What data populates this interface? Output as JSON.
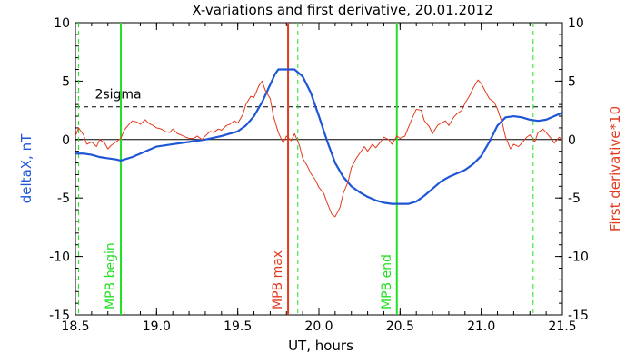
{
  "chart_data": {
    "type": "line",
    "title": "X-variations and first derivative, 20.01.2012",
    "xlabel": "UT, hours",
    "ylabel_left": "deltaX, nT",
    "ylabel_right": "First derivative*10",
    "xlim": [
      18.5,
      21.5
    ],
    "ylim_left": [
      -15,
      10
    ],
    "ylim_right": [
      -15,
      10
    ],
    "xticks": [
      "18.5",
      "19.0",
      "19.5",
      "20.0",
      "20.5",
      "21.0",
      "21.5"
    ],
    "yticks_left": [
      "10",
      "5",
      "0",
      "-5",
      "-10",
      "-15"
    ],
    "yticks_right": [
      "10",
      "5",
      "0",
      "-5",
      "-10",
      "-15"
    ],
    "sigma_label": "2sigma",
    "sigma_level": 2.8,
    "colors": {
      "deltaX": "#1e56d6",
      "derivative": "#e23a1f",
      "mpb": "#22e022",
      "mpb_max": "#e23a1f",
      "sigma": "#000000"
    },
    "series": [
      {
        "key": "deltaX",
        "x": [
          18.5,
          18.55,
          18.6,
          18.65,
          18.7,
          18.75,
          18.78,
          18.85,
          18.9,
          18.95,
          19.0,
          19.1,
          19.2,
          19.3,
          19.4,
          19.45,
          19.5,
          19.55,
          19.6,
          19.65,
          19.7,
          19.73,
          19.75,
          19.8,
          19.85,
          19.9,
          19.95,
          20.0,
          20.05,
          20.1,
          20.15,
          20.2,
          20.25,
          20.3,
          20.35,
          20.4,
          20.45,
          20.5,
          20.55,
          20.6,
          20.65,
          20.7,
          20.75,
          20.8,
          20.85,
          20.9,
          20.95,
          21.0,
          21.05,
          21.1,
          21.15,
          21.2,
          21.25,
          21.3,
          21.35,
          21.4,
          21.45,
          21.5
        ],
        "y": [
          -1.2,
          -1.2,
          -1.3,
          -1.5,
          -1.6,
          -1.7,
          -1.8,
          -1.5,
          -1.2,
          -0.9,
          -0.6,
          -0.4,
          -0.2,
          0.0,
          0.3,
          0.5,
          0.7,
          1.2,
          2.0,
          3.2,
          4.7,
          5.6,
          6.0,
          6.0,
          6.0,
          5.4,
          4.0,
          2.0,
          -0.1,
          -2.0,
          -3.2,
          -4.0,
          -4.5,
          -4.9,
          -5.2,
          -5.4,
          -5.5,
          -5.5,
          -5.5,
          -5.3,
          -4.8,
          -4.2,
          -3.6,
          -3.2,
          -2.9,
          -2.6,
          -2.1,
          -1.4,
          -0.2,
          1.2,
          1.9,
          2.0,
          1.9,
          1.7,
          1.6,
          1.7,
          2.0,
          2.3
        ]
      },
      {
        "key": "derivative",
        "x": [
          18.5,
          18.52,
          18.55,
          18.57,
          18.6,
          18.63,
          18.65,
          18.68,
          18.7,
          18.72,
          18.75,
          18.78,
          18.8,
          18.83,
          18.85,
          18.88,
          18.9,
          18.93,
          18.95,
          18.98,
          19.0,
          19.03,
          19.05,
          19.08,
          19.1,
          19.13,
          19.15,
          19.18,
          19.2,
          19.23,
          19.25,
          19.28,
          19.3,
          19.33,
          19.35,
          19.38,
          19.4,
          19.43,
          19.45,
          19.48,
          19.5,
          19.53,
          19.55,
          19.58,
          19.6,
          19.63,
          19.65,
          19.67,
          19.7,
          19.72,
          19.75,
          19.78,
          19.8,
          19.83,
          19.85,
          19.88,
          19.9,
          19.93,
          19.95,
          19.98,
          20.0,
          20.03,
          20.05,
          20.08,
          20.1,
          20.13,
          20.15,
          20.18,
          20.2,
          20.23,
          20.25,
          20.28,
          20.3,
          20.33,
          20.35,
          20.38,
          20.4,
          20.43,
          20.45,
          20.48,
          20.5,
          20.53,
          20.55,
          20.58,
          20.6,
          20.63,
          20.65,
          20.68,
          20.7,
          20.73,
          20.75,
          20.78,
          20.8,
          20.83,
          20.85,
          20.88,
          20.9,
          20.93,
          20.95,
          20.98,
          21.0,
          21.03,
          21.05,
          21.08,
          21.1,
          21.13,
          21.15,
          21.18,
          21.2,
          21.23,
          21.25,
          21.28,
          21.3,
          21.33,
          21.35,
          21.38,
          21.4,
          21.43,
          21.45,
          21.48,
          21.5
        ],
        "y": [
          0.3,
          1.0,
          0.4,
          -0.4,
          -0.2,
          -0.6,
          0.0,
          -0.3,
          -0.8,
          -0.5,
          -0.2,
          0.1,
          0.8,
          1.3,
          1.6,
          1.5,
          1.3,
          1.7,
          1.4,
          1.2,
          1.0,
          0.9,
          0.7,
          0.6,
          0.9,
          0.5,
          0.4,
          0.2,
          0.1,
          0.1,
          0.3,
          0.0,
          0.3,
          0.7,
          0.6,
          0.9,
          0.8,
          1.2,
          1.3,
          1.6,
          1.4,
          2.1,
          3.0,
          3.7,
          3.6,
          4.6,
          5.0,
          4.2,
          3.5,
          2.0,
          0.6,
          -0.3,
          0.3,
          -0.1,
          0.5,
          -0.5,
          -1.6,
          -2.3,
          -2.9,
          -3.5,
          -4.1,
          -4.6,
          -5.4,
          -6.4,
          -6.6,
          -5.8,
          -4.6,
          -3.6,
          -2.4,
          -1.6,
          -1.2,
          -0.6,
          -1.0,
          -0.4,
          -0.7,
          -0.2,
          0.2,
          0.0,
          -0.4,
          0.3,
          0.1,
          0.3,
          1.0,
          2.0,
          2.6,
          2.5,
          1.6,
          1.1,
          0.5,
          1.2,
          1.4,
          1.6,
          1.2,
          1.9,
          2.2,
          2.5,
          3.1,
          3.8,
          4.4,
          5.1,
          4.8,
          4.0,
          3.5,
          3.2,
          2.6,
          1.4,
          0.2,
          -0.8,
          -0.4,
          -0.6,
          -0.3,
          0.2,
          0.4,
          -0.2,
          0.6,
          0.9,
          0.6,
          0.1,
          -0.3,
          0.2,
          0.0
        ]
      }
    ],
    "vertical_markers": [
      {
        "x": 18.78,
        "label": "MPB begin",
        "style": "solid",
        "color_key": "mpb"
      },
      {
        "x": 19.81,
        "label": "MPB max",
        "style": "solid",
        "color_key": "mpb_max"
      },
      {
        "x": 20.48,
        "label": "MPB end",
        "style": "solid",
        "color_key": "mpb"
      },
      {
        "x": 18.52,
        "label": "",
        "style": "dashed",
        "color_key": "mpb"
      },
      {
        "x": 19.87,
        "label": "",
        "style": "dashed",
        "color_key": "mpb"
      },
      {
        "x": 21.32,
        "label": "",
        "style": "dashed",
        "color_key": "mpb"
      }
    ],
    "zero_line": true,
    "grid": false
  }
}
